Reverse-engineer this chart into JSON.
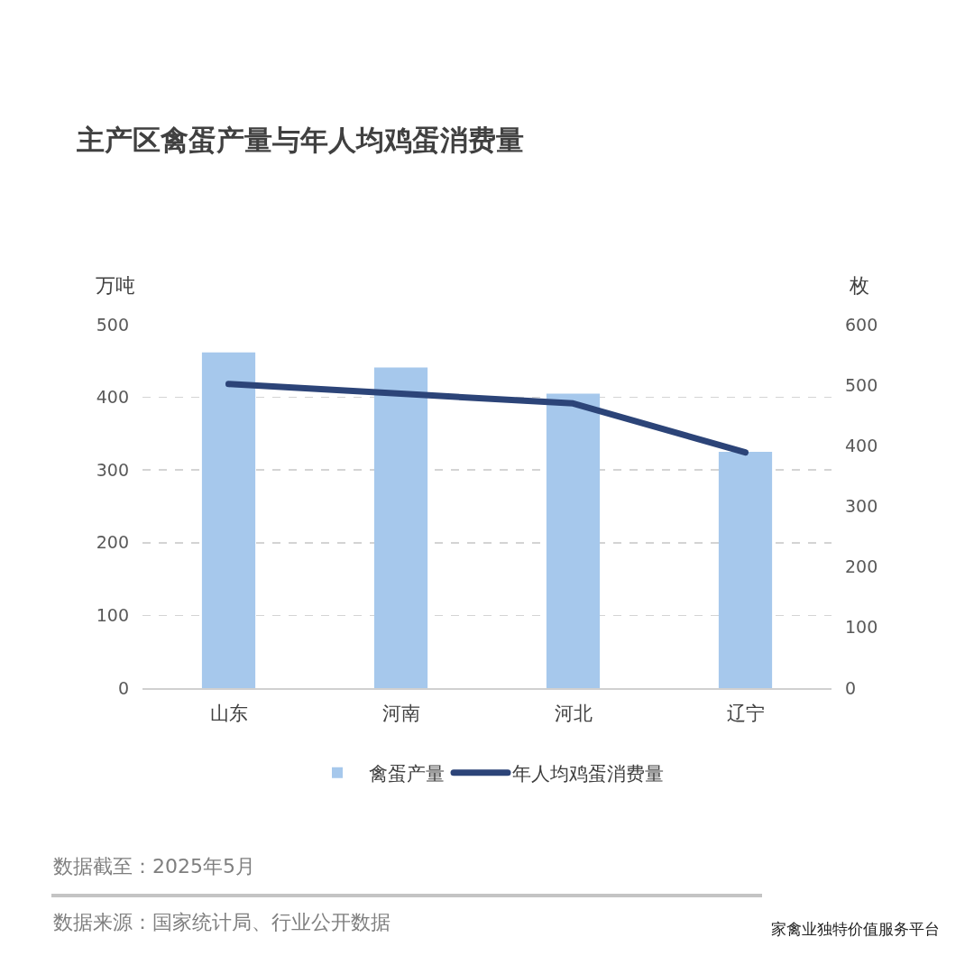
{
  "chart_data": {
    "type": "bar",
    "title": "主产区禽蛋产量与年人均鸡蛋消费量",
    "ylabel": "万吨",
    "y2label": "枚",
    "categories": [
      "山东",
      "河南",
      "河北",
      "辽宁"
    ],
    "series": [
      {
        "name": "禽蛋产量",
        "color": "#a6c8ec",
        "values": [
          462,
          441,
          405,
          325
        ]
      },
      {
        "name": "年人均鸡蛋消费量",
        "type": "line",
        "axis": "y2",
        "color": "#2c4478",
        "values": [
          502,
          486,
          470,
          389
        ]
      }
    ],
    "ylim": [
      0,
      500
    ],
    "yticks": [
      0,
      100,
      200,
      300,
      400,
      500
    ],
    "y2lim": [
      0,
      600
    ],
    "y2ticks": [
      0,
      100,
      200,
      300,
      400,
      500,
      600
    ],
    "grid": "y",
    "legend": "bottom",
    "line_style": "solid",
    "annotations": [
      "数据截至：2025年5月",
      "数据来源：国家统计局、行业公开数据",
      "家禽业独特价值服务平台"
    ]
  }
}
